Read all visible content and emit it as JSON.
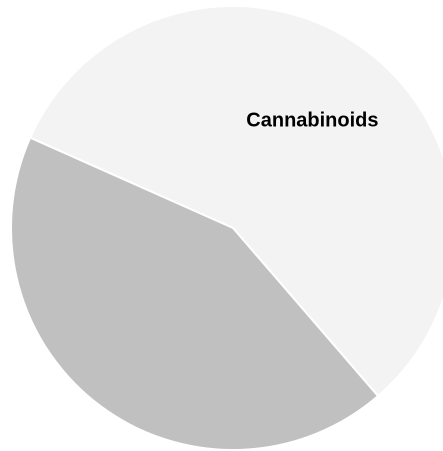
{
  "chart_data": {
    "type": "pie",
    "slices": [
      {
        "label": "Cannabinoids",
        "value": 57,
        "color": "#f3f3f3",
        "show_label": true
      },
      {
        "label": "",
        "value": 43,
        "color": "#c0c0c0",
        "show_label": false
      }
    ],
    "slice_border_color": "#ffffff",
    "legend": "none"
  }
}
